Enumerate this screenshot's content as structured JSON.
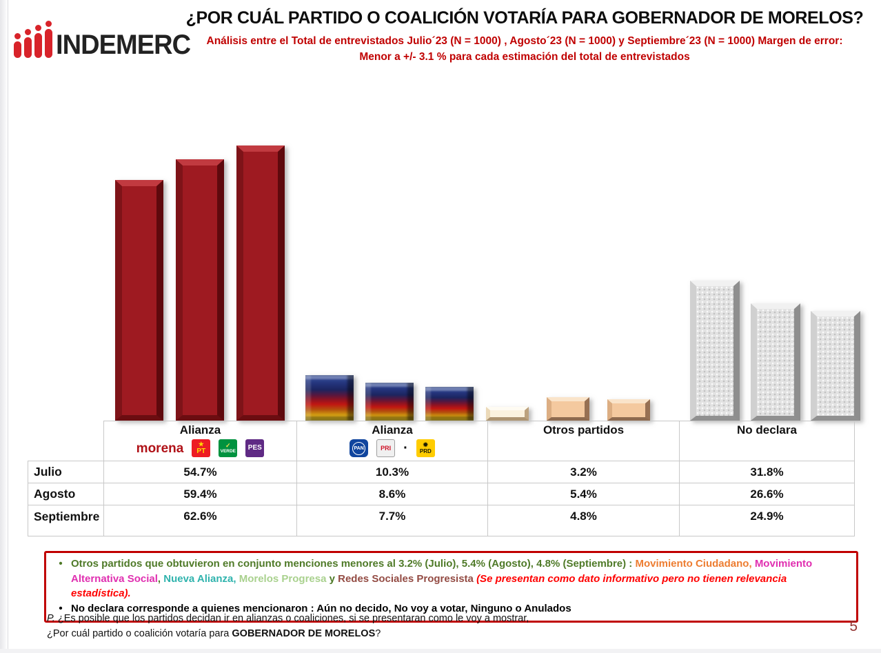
{
  "page": {
    "number": "5",
    "accent_red": "#C00000",
    "page_number_color": "#943634",
    "background": "#FFFFFF"
  },
  "logo": {
    "text": "INDEMERC",
    "icon": "people-bars-icon",
    "icon_color": "#D8232A",
    "text_color": "#222222"
  },
  "header": {
    "title": "¿POR CUÁL PARTIDO O COALICIÓN VOTARÍA PARA GOBERNADOR DE MORELOS?",
    "subtitle_line1": "Análisis entre el Total de entrevistados Julio´23 (N = 1000) , Agosto´23 (N = 1000) y Septiembre´23 (N = 1000) Margen de error:",
    "subtitle_line2": "Menor a +/- 3.1 % para cada estimación del total de entrevistados"
  },
  "chart_data": {
    "type": "bar",
    "title": "¿POR CUÁL PARTIDO O COALICIÓN VOTARÍA PARA GOBERNADOR DE MORELOS?",
    "unit": "percent",
    "categories": [
      "Alianza",
      "Alianza",
      "Otros partidos",
      "No declara"
    ],
    "category_parties": [
      [
        "morena",
        "PT",
        "VERDE",
        "PES"
      ],
      [
        "PAN",
        "PRI",
        "PRD"
      ],
      [],
      []
    ],
    "series": [
      {
        "name": "Julio",
        "values": [
          54.7,
          10.3,
          3.2,
          31.8
        ]
      },
      {
        "name": "Agosto",
        "values": [
          59.4,
          8.6,
          5.4,
          26.6
        ]
      },
      {
        "name": "Septiembre",
        "values": [
          62.6,
          7.7,
          4.8,
          24.9
        ]
      }
    ],
    "bar_colors": [
      "#9E1A21",
      "blue-red-yellow gradient (PAN/PRI/PRD)",
      "#F4C99F",
      "#E2E2E2 dotted texture"
    ],
    "axis": "none (values shown in table below)",
    "ylim": [
      0,
      72
    ]
  },
  "party_logos": {
    "group1": [
      {
        "name": "morena-logo",
        "type": "wordmark",
        "text": "morena",
        "fg": "#B01117",
        "size": 19
      },
      {
        "name": "pt-logo",
        "type": "chip",
        "text": "PT",
        "bg": "#ED1C24",
        "fg": "#FFDE00",
        "mark": "★",
        "mark_color": "#FFDE00",
        "text_size": 10
      },
      {
        "name": "verde-logo",
        "type": "chip",
        "text": "VERDE",
        "bg": "#00923F",
        "fg": "#FFFFFF",
        "mark": "✓",
        "mark_color": "#F4E04D",
        "text_size": 6.5
      },
      {
        "name": "pes-logo",
        "type": "chip",
        "text": "PES",
        "bg": "#5F2A84",
        "fg": "#FFFFFF",
        "text_size": 10
      }
    ],
    "group2": [
      {
        "name": "pan-logo",
        "type": "chip",
        "text": "PAN",
        "bg": "#10459E",
        "fg": "#FFFFFF",
        "circle": true,
        "text_size": 7
      },
      {
        "name": "pri-logo",
        "type": "chip",
        "text": "PRI",
        "bg": "#F0F0F0",
        "fg": "#CE1126",
        "border": "#9E9E9E",
        "text_size": 9
      },
      {
        "name": "logo-separator-dot",
        "type": "wordmark",
        "text": "·",
        "fg": "#000000",
        "size": 20
      },
      {
        "name": "prd-logo",
        "type": "chip",
        "text": "PRD",
        "bg": "#FFCC00",
        "fg": "#1A1A00",
        "mark": "✹",
        "mark_color": "#1A1A00",
        "text_size": 8
      }
    ]
  },
  "notes": {
    "marker": "•",
    "bullet1_marker_color": "#4F7A28",
    "bullet2_marker_color": "#000000",
    "bullet1_segments": [
      {
        "t": "Otros partidos que obtuvieron en conjunto menciones menores al 3.2% (Julio), 5.4% (Agosto), 4.8% (Septiembre) : ",
        "c": "#4F7A28",
        "b": true
      },
      {
        "t": "Movimiento Ciudadano, ",
        "c": "#ED7D31",
        "b": true
      },
      {
        "t": "Movimiento Alternativa Social",
        "c": "#E02FB0",
        "b": true
      },
      {
        "t": ", ",
        "c": "#4F7A28",
        "b": true
      },
      {
        "t": "Nueva Alianza, ",
        "c": "#2FB3AD",
        "b": true
      },
      {
        "t": "Morelos Progresa ",
        "c": "#A9D18E",
        "b": true
      },
      {
        "t": " y ",
        "c": "#4F7A28",
        "b": true
      },
      {
        "t": "Redes Sociales Progresista ",
        "c": "#934B43",
        "b": true
      },
      {
        "t": "(Se presentan como dato informativo pero no tienen relevancia estadística).",
        "c": "#FF0000",
        "b": true,
        "i": true
      }
    ],
    "bullet2_segments": [
      {
        "t": "No declara corresponde a quienes mencionaron : Aún no decido, No voy a votar, Ninguno o Anulados",
        "c": "#000000",
        "b": true
      }
    ]
  },
  "footer": {
    "line1_segments": [
      {
        "t": "P. ",
        "i": true
      },
      {
        "t": "¿Es posible que los partidos decidan ir en alianzas o coaliciones, si se presentaran como le voy a mostrar,"
      }
    ],
    "line2_segments": [
      {
        "t": "¿Por cuál partido o coalición votaría para "
      },
      {
        "t": "GOBERNADOR DE MORELOS",
        "b": true
      },
      {
        "t": "?"
      }
    ]
  }
}
